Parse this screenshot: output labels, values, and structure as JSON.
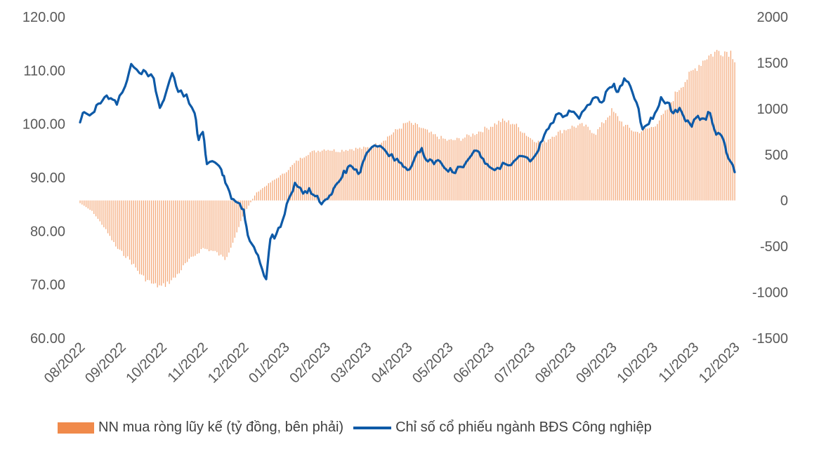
{
  "chart_data": {
    "type": "bar+line",
    "title": "",
    "colors": {
      "bar": "#F4A97A",
      "line": "#0E5AA7",
      "tick": "#595959"
    },
    "y_left": {
      "ylim": [
        60,
        120
      ],
      "ticks": [
        "120.00",
        "110.00",
        "100.00",
        "90.00",
        "80.00",
        "70.00",
        "60.00"
      ]
    },
    "y_right": {
      "ylim": [
        -1500,
        2000
      ],
      "ticks": [
        "2000",
        "1500",
        "1000",
        "500",
        "0",
        "-500",
        "-1000",
        "-1500"
      ]
    },
    "x_ticks": [
      "08/2022",
      "09/2022",
      "10/2022",
      "11/2022",
      "12/2022",
      "01/2023",
      "02/2023",
      "03/2023",
      "04/2023",
      "05/2023",
      "06/2023",
      "07/2023",
      "08/2023",
      "09/2023",
      "10/2023",
      "11/2023",
      "12/2023"
    ],
    "bar_series": {
      "name": "NN mua ròng lũy kế (tỷ đồng, bên phải)",
      "axis": "right",
      "keypoints": [
        [
          0,
          -30
        ],
        [
          0.3,
          -120
        ],
        [
          0.6,
          -300
        ],
        [
          0.9,
          -520
        ],
        [
          1.2,
          -640
        ],
        [
          1.5,
          -820
        ],
        [
          1.8,
          -920
        ],
        [
          2.0,
          -940
        ],
        [
          2.3,
          -850
        ],
        [
          2.6,
          -680
        ],
        [
          3.0,
          -520
        ],
        [
          3.3,
          -560
        ],
        [
          3.55,
          -640
        ],
        [
          3.8,
          -380
        ],
        [
          4.0,
          -150
        ],
        [
          4.3,
          80
        ],
        [
          4.6,
          180
        ],
        [
          5.0,
          300
        ],
        [
          5.3,
          430
        ],
        [
          5.6,
          520
        ],
        [
          6.0,
          560
        ],
        [
          6.3,
          540
        ],
        [
          6.6,
          560
        ],
        [
          7.0,
          570
        ],
        [
          7.3,
          620
        ],
        [
          7.6,
          720
        ],
        [
          8.0,
          850
        ],
        [
          8.3,
          800
        ],
        [
          8.6,
          720
        ],
        [
          9.0,
          650
        ],
        [
          9.3,
          670
        ],
        [
          9.6,
          720
        ],
        [
          10.0,
          800
        ],
        [
          10.3,
          870
        ],
        [
          10.6,
          840
        ],
        [
          11.0,
          680
        ],
        [
          11.3,
          620
        ],
        [
          11.6,
          720
        ],
        [
          12.0,
          800
        ],
        [
          12.3,
          820
        ],
        [
          12.6,
          730
        ],
        [
          13.0,
          980
        ],
        [
          13.3,
          820
        ],
        [
          13.6,
          740
        ],
        [
          14.0,
          800
        ],
        [
          14.3,
          950
        ],
        [
          14.6,
          1200
        ],
        [
          15.0,
          1420
        ],
        [
          15.3,
          1560
        ],
        [
          15.6,
          1630
        ],
        [
          15.9,
          1620
        ],
        [
          16.0,
          1550
        ]
      ]
    },
    "line_series": {
      "name": "Chỉ số cổ phiếu ngành BĐS Công nghiệp",
      "axis": "left",
      "keypoints": [
        [
          0,
          100.3
        ],
        [
          0.1,
          102.2
        ],
        [
          0.3,
          102.0
        ],
        [
          0.45,
          103.8
        ],
        [
          0.6,
          105.0
        ],
        [
          0.75,
          104.8
        ],
        [
          0.9,
          103.6
        ],
        [
          1.1,
          107.0
        ],
        [
          1.25,
          111.2
        ],
        [
          1.45,
          109.5
        ],
        [
          1.6,
          109.8
        ],
        [
          1.8,
          108.5
        ],
        [
          1.95,
          103.0
        ],
        [
          2.05,
          104.5
        ],
        [
          2.25,
          109.5
        ],
        [
          2.4,
          106.0
        ],
        [
          2.6,
          105.5
        ],
        [
          2.8,
          102.0
        ],
        [
          2.9,
          97.0
        ],
        [
          3.0,
          98.5
        ],
        [
          3.1,
          92.5
        ],
        [
          3.3,
          92.8
        ],
        [
          3.45,
          91.5
        ],
        [
          3.55,
          89.0
        ],
        [
          3.7,
          86.0
        ],
        [
          3.85,
          85.3
        ],
        [
          4.0,
          84.0
        ],
        [
          4.1,
          79.2
        ],
        [
          4.25,
          77.0
        ],
        [
          4.4,
          74.0
        ],
        [
          4.55,
          71.0
        ],
        [
          4.65,
          78.5
        ],
        [
          4.8,
          79.5
        ],
        [
          4.95,
          82.0
        ],
        [
          5.1,
          86.0
        ],
        [
          5.25,
          89.0
        ],
        [
          5.45,
          87.0
        ],
        [
          5.6,
          88.0
        ],
        [
          5.75,
          86.5
        ],
        [
          5.9,
          85.0
        ],
        [
          6.05,
          86.0
        ],
        [
          6.2,
          88.0
        ],
        [
          6.4,
          90.0
        ],
        [
          6.55,
          92.0
        ],
        [
          6.7,
          91.5
        ],
        [
          6.85,
          91.0
        ],
        [
          7.0,
          94.5
        ],
        [
          7.2,
          96.0
        ],
        [
          7.4,
          95.5
        ],
        [
          7.55,
          94.0
        ],
        [
          7.75,
          93.5
        ],
        [
          7.9,
          92.0
        ],
        [
          8.05,
          91.5
        ],
        [
          8.2,
          94.0
        ],
        [
          8.35,
          95.5
        ],
        [
          8.5,
          93.0
        ],
        [
          8.65,
          92.5
        ],
        [
          8.8,
          93.0
        ],
        [
          8.95,
          91.5
        ],
        [
          9.1,
          91.0
        ],
        [
          9.3,
          92.0
        ],
        [
          9.5,
          93.5
        ],
        [
          9.7,
          95.0
        ],
        [
          9.85,
          93.5
        ],
        [
          10.0,
          92.0
        ],
        [
          10.2,
          91.8
        ],
        [
          10.4,
          92.5
        ],
        [
          10.6,
          93.0
        ],
        [
          10.8,
          94.0
        ],
        [
          11.0,
          93.0
        ],
        [
          11.2,
          95.0
        ],
        [
          11.35,
          98.0
        ],
        [
          11.5,
          100.0
        ],
        [
          11.7,
          102.0
        ],
        [
          11.85,
          101.5
        ],
        [
          12.0,
          102.3
        ],
        [
          12.2,
          101.0
        ],
        [
          12.4,
          103.5
        ],
        [
          12.6,
          105.0
        ],
        [
          12.75,
          104.0
        ],
        [
          12.9,
          106.5
        ],
        [
          13.05,
          107.5
        ],
        [
          13.15,
          106.0
        ],
        [
          13.3,
          108.5
        ],
        [
          13.45,
          107.0
        ],
        [
          13.6,
          104.0
        ],
        [
          13.75,
          99.0
        ],
        [
          13.9,
          100.0
        ],
        [
          14.05,
          102.0
        ],
        [
          14.2,
          105.0
        ],
        [
          14.35,
          104.0
        ],
        [
          14.5,
          102.0
        ],
        [
          14.65,
          103.0
        ],
        [
          14.8,
          100.5
        ],
        [
          14.95,
          99.5
        ],
        [
          15.1,
          101.5
        ],
        [
          15.25,
          101.0
        ],
        [
          15.4,
          102.0
        ],
        [
          15.55,
          98.0
        ],
        [
          15.7,
          97.5
        ],
        [
          15.85,
          93.5
        ],
        [
          16.0,
          91.0
        ]
      ]
    },
    "legend": [
      {
        "label": "NN mua ròng lũy kế (tỷ đồng, bên phải)",
        "type": "bar"
      },
      {
        "label": "Chỉ số cổ phiếu ngành BĐS Công nghiệp",
        "type": "line"
      }
    ]
  }
}
